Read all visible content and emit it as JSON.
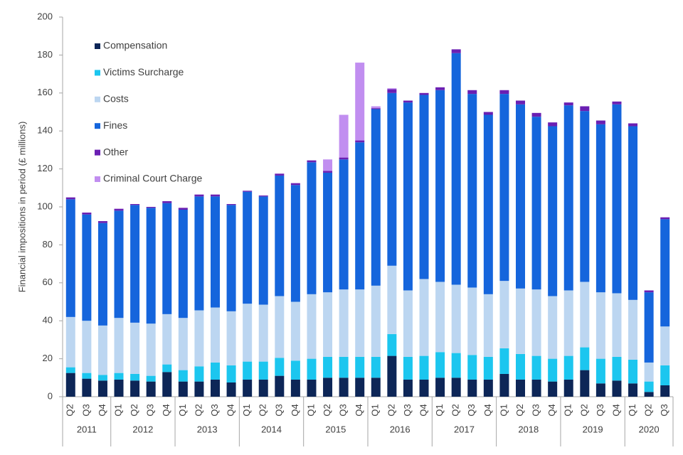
{
  "chart_data": {
    "type": "stacked_bar",
    "y_label": "Financial impositions in period (£ millions)",
    "categories": [
      "Q2",
      "Q3",
      "Q4",
      "Q1",
      "Q2",
      "Q3",
      "Q4",
      "Q1",
      "Q2",
      "Q3",
      "Q4",
      "Q1",
      "Q2",
      "Q3",
      "Q4",
      "Q1",
      "Q2",
      "Q3",
      "Q4",
      "Q1",
      "Q2",
      "Q3",
      "Q4",
      "Q1",
      "Q2",
      "Q3",
      "Q4",
      "Q1",
      "Q2",
      "Q3",
      "Q4",
      "Q1",
      "Q2",
      "Q3",
      "Q4",
      "Q1",
      "Q2",
      "Q3"
    ],
    "groups": [
      {
        "label": "2011",
        "size": 3
      },
      {
        "label": "2012",
        "size": 4
      },
      {
        "label": "2013",
        "size": 4
      },
      {
        "label": "2014",
        "size": 4
      },
      {
        "label": "2015",
        "size": 4
      },
      {
        "label": "2016",
        "size": 4
      },
      {
        "label": "2017",
        "size": 4
      },
      {
        "label": "2018",
        "size": 4
      },
      {
        "label": "2019",
        "size": 4
      },
      {
        "label": "2020",
        "size": 3
      }
    ],
    "ylim": [
      0,
      200
    ],
    "yticks": [
      0,
      20,
      40,
      60,
      80,
      100,
      120,
      140,
      160,
      180,
      200
    ],
    "series": [
      {
        "name": "Compensation",
        "color": "#0d2657",
        "values": [
          12.5,
          9.5,
          8.5,
          9,
          8.5,
          8,
          13,
          8,
          8,
          9,
          7.5,
          9,
          9,
          11,
          9,
          9,
          10,
          10,
          10,
          10,
          21.5,
          9,
          9,
          10,
          10,
          9,
          9,
          12,
          9,
          9,
          8,
          9,
          14,
          7,
          8.5,
          7,
          2.5,
          6
        ]
      },
      {
        "name": "Victims Surcharge",
        "color": "#1cc6ef",
        "values": [
          3,
          3,
          3,
          3.5,
          3.5,
          3,
          4,
          6,
          8,
          9,
          9,
          9.5,
          9.5,
          9.5,
          10,
          11,
          11,
          11,
          11,
          11,
          11.5,
          12,
          12.5,
          13.5,
          13,
          13,
          12,
          13.5,
          13.5,
          12.5,
          12,
          12.5,
          12,
          13,
          12.5,
          12.5,
          5.5,
          10.5
        ]
      },
      {
        "name": "Costs",
        "color": "#bcd6f1",
        "values": [
          26.5,
          27.5,
          26,
          29,
          27,
          27.5,
          26.5,
          27.5,
          29.5,
          29,
          28.5,
          30.5,
          30,
          32.5,
          31,
          34,
          34,
          35.5,
          35.5,
          37.5,
          36,
          35,
          40.5,
          37,
          36,
          35.5,
          33,
          35.5,
          34.5,
          35,
          33,
          34.5,
          34.5,
          35,
          33.5,
          31.5,
          10,
          20.5
        ]
      },
      {
        "name": "Fines",
        "color": "#1565dc",
        "values": [
          62,
          56,
          54,
          56.5,
          62,
          61,
          58.5,
          57,
          60,
          58.5,
          56,
          59,
          57,
          63.5,
          61.5,
          69.5,
          63,
          68.5,
          77.5,
          93,
          91,
          99,
          97,
          101,
          122,
          102,
          94.5,
          98.5,
          97,
          91,
          89.5,
          97.5,
          90,
          88.5,
          99.5,
          91.5,
          37,
          56.5
        ]
      },
      {
        "name": "Other",
        "color": "#6a1fb3",
        "values": [
          1,
          1,
          1,
          1,
          0.5,
          0.5,
          1,
          1,
          1,
          1,
          0.5,
          0.5,
          0.5,
          1,
          1,
          1,
          1,
          1,
          1,
          0.5,
          2,
          1,
          1,
          1.5,
          2,
          2,
          1.5,
          2,
          2,
          2,
          2,
          1.5,
          2.5,
          2,
          1.5,
          1.5,
          1,
          1
        ]
      },
      {
        "name": "Criminal Court Charge",
        "color": "#c18ef0",
        "values": [
          null,
          null,
          null,
          null,
          null,
          null,
          null,
          null,
          null,
          null,
          null,
          null,
          null,
          null,
          null,
          null,
          6,
          22.5,
          41,
          1,
          0.5,
          0,
          0,
          0,
          0,
          0,
          0,
          0,
          0,
          0,
          0,
          0,
          0,
          0,
          0,
          0,
          0,
          0
        ]
      }
    ]
  }
}
